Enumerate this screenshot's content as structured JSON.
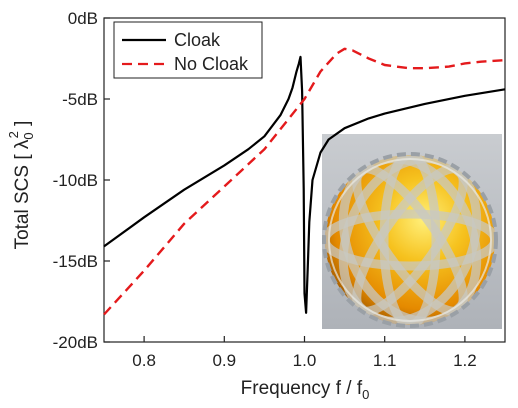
{
  "chart_data": {
    "type": "line",
    "xlabel_main": "Frequency f / f",
    "xlabel_sub": "0",
    "ylabel_main": "Total SCS [ λ",
    "ylabel_sub": "0",
    "ylabel_sup": "2",
    "ylabel_close": " ]",
    "xlim": [
      0.75,
      1.25
    ],
    "ylim": [
      -20,
      0
    ],
    "x_ticks": [
      0.8,
      0.9,
      1.0,
      1.1,
      1.2
    ],
    "x_tick_labels": [
      "0.8",
      "0.9",
      "1.0",
      "1.1",
      "1.2"
    ],
    "y_ticks": [
      0,
      -5,
      -10,
      -15,
      -20
    ],
    "y_tick_labels": [
      "0dB",
      "-5dB",
      "-10dB",
      "-15dB",
      "-20dB"
    ],
    "legend_position": "top-left",
    "grid": false,
    "series": [
      {
        "name": "Cloak",
        "color": "#000000",
        "dash": "solid",
        "x": [
          0.75,
          0.8,
          0.85,
          0.9,
          0.93,
          0.95,
          0.97,
          0.98,
          0.985,
          0.99,
          0.993,
          0.995,
          0.997,
          0.999,
          1.0,
          1.002,
          1.004,
          1.006,
          1.01,
          1.02,
          1.03,
          1.05,
          1.08,
          1.1,
          1.15,
          1.2,
          1.25
        ],
        "y": [
          -14.1,
          -12.3,
          -10.6,
          -9.1,
          -8.1,
          -7.3,
          -6.0,
          -5.0,
          -4.3,
          -3.3,
          -2.8,
          -2.4,
          -4.5,
          -10.5,
          -17.0,
          -18.2,
          -15.5,
          -12.6,
          -10.0,
          -8.3,
          -7.5,
          -6.8,
          -6.2,
          -5.9,
          -5.3,
          -4.8,
          -4.4
        ]
      },
      {
        "name": "No Cloak",
        "color": "#e41a1c",
        "dash": "dashed",
        "x": [
          0.75,
          0.8,
          0.85,
          0.9,
          0.95,
          1.0,
          1.02,
          1.04,
          1.05,
          1.06,
          1.08,
          1.1,
          1.13,
          1.15,
          1.18,
          1.2,
          1.22,
          1.25
        ],
        "y": [
          -18.3,
          -15.6,
          -12.7,
          -10.4,
          -8.1,
          -5.0,
          -3.3,
          -2.2,
          -1.9,
          -2.0,
          -2.5,
          -2.9,
          -3.1,
          -3.1,
          -3.0,
          -2.8,
          -2.7,
          -2.6
        ]
      }
    ]
  },
  "inset": {
    "icon": "cloaked-sphere-render-icon",
    "background": "#bfc3c8",
    "sphere_color": "#f3a000",
    "highlight_color": "#fff07a"
  }
}
